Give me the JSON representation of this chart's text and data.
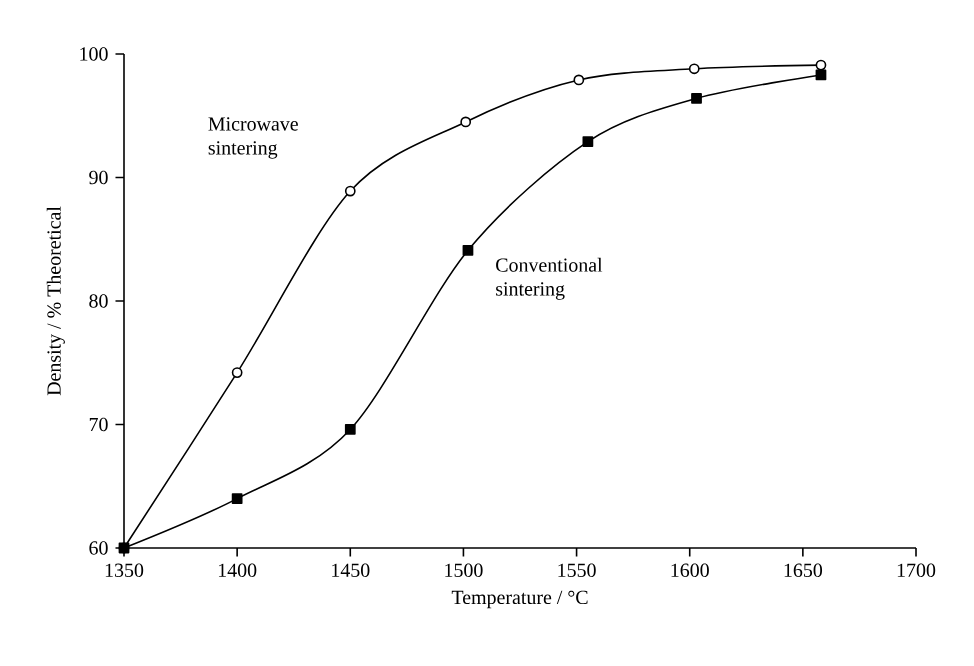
{
  "chart_data": {
    "type": "line",
    "xlabel": "Temperature / °C",
    "ylabel": "Density / % Theoretical",
    "xlim": [
      1350,
      1700
    ],
    "xticks": [
      1350,
      1400,
      1450,
      1500,
      1550,
      1600,
      1650,
      1700
    ],
    "ylim": [
      60,
      100
    ],
    "yticks": [
      60,
      70,
      80,
      90,
      100
    ],
    "grid": false,
    "legend": false,
    "series": [
      {
        "name": "Microwave sintering",
        "color": "#000000",
        "marker": "circle",
        "x": [
          1350,
          1400,
          1450,
          1501,
          1551,
          1602,
          1658
        ],
        "values": [
          60,
          74.2,
          88.9,
          94.5,
          97.9,
          98.8,
          99.1
        ]
      },
      {
        "name": "Conventional sintering",
        "color": "#000000",
        "marker": "square",
        "x": [
          1350,
          1400,
          1450,
          1502,
          1555,
          1603,
          1658
        ],
        "values": [
          60,
          64.0,
          69.6,
          84.1,
          92.9,
          96.4,
          98.3
        ]
      }
    ]
  }
}
